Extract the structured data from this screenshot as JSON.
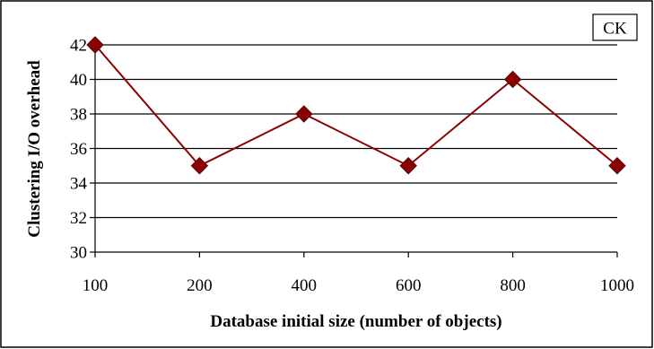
{
  "chart_data": {
    "type": "line",
    "categories": [
      "100",
      "200",
      "400",
      "600",
      "800",
      "1000"
    ],
    "series": [
      {
        "name": "CK",
        "values": [
          42,
          35,
          38,
          35,
          40,
          35
        ],
        "color": "#8b0000"
      }
    ],
    "xlabel": "Database initial size (number of objects)",
    "ylabel": "Clustering I/O overhead",
    "ylim": [
      30,
      42
    ],
    "yticks": [
      30,
      32,
      34,
      36,
      38,
      40,
      42
    ],
    "grid": true,
    "legend_position": "top-right",
    "marker": "diamond"
  }
}
